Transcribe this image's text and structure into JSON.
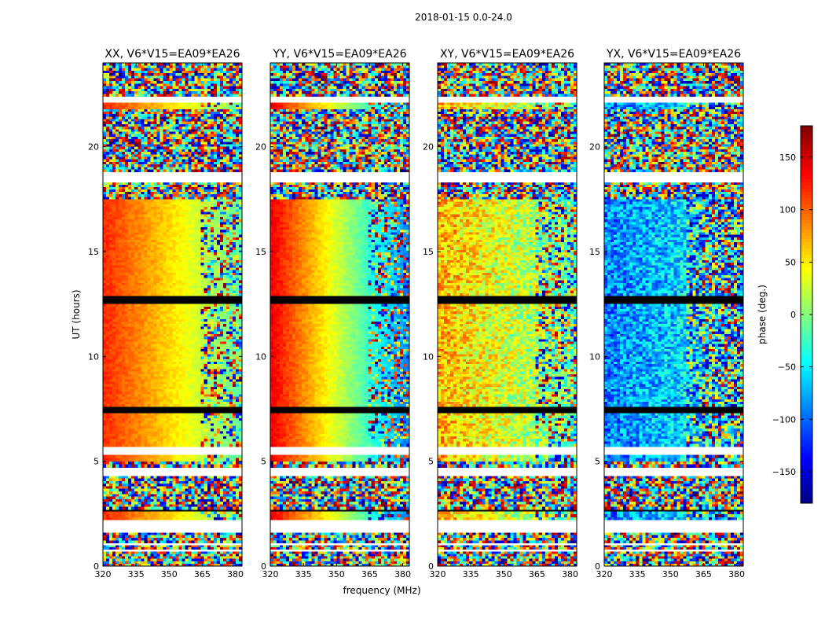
{
  "figure": {
    "suptitle": "2018-01-15 0.0-24.0"
  },
  "chart_data": [
    {
      "type": "heatmap",
      "title": "XX, V6*V15=EA09*EA26",
      "xlabel": "",
      "ylabel": "UT (hours)",
      "xlim": [
        320,
        383
      ],
      "ylim": [
        0,
        24
      ],
      "xticks": [
        "320",
        "335",
        "350",
        "365",
        "380"
      ],
      "yticks": [
        "0",
        "5",
        "10",
        "15",
        "20"
      ],
      "value": "phase (deg.)",
      "description_pattern": "coherent_low_freq_warm"
    },
    {
      "type": "heatmap",
      "title": "YY, V6*V15=EA09*EA26",
      "xlabel": "frequency (MHz)",
      "ylabel": "",
      "xlim": [
        320,
        383
      ],
      "ylim": [
        0,
        24
      ],
      "xticks": [
        "320",
        "335",
        "350",
        "365",
        "380"
      ],
      "yticks": [
        "0",
        "5",
        "10",
        "15",
        "20"
      ],
      "value": "phase (deg.)",
      "description_pattern": "coherent_gradient"
    },
    {
      "type": "heatmap",
      "title": "XY, V6*V15=EA09*EA26",
      "xlabel": "",
      "ylabel": "",
      "xlim": [
        320,
        383
      ],
      "ylim": [
        0,
        24
      ],
      "xticks": [
        "320",
        "335",
        "350",
        "365",
        "380"
      ],
      "yticks": [
        "0",
        "5",
        "10",
        "15",
        "20"
      ],
      "value": "phase (deg.)",
      "description_pattern": "noisy_warm"
    },
    {
      "type": "heatmap",
      "title": "YX, V6*V15=EA09*EA26",
      "xlabel": "",
      "ylabel": "",
      "xlim": [
        320,
        383
      ],
      "ylim": [
        0,
        24
      ],
      "xticks": [
        "320",
        "335",
        "350",
        "365",
        "380"
      ],
      "yticks": [
        "0",
        "5",
        "10",
        "15",
        "20"
      ],
      "value": "phase (deg.)",
      "description_pattern": "noisy_cool"
    }
  ],
  "colorbar": {
    "label": "phase (deg.)",
    "range": [
      -180,
      180
    ],
    "ticks": [
      "150",
      "100",
      "50",
      "0",
      "−50",
      "−100",
      "−150"
    ],
    "tick_values": [
      150,
      100,
      50,
      0,
      -50,
      -100,
      -150
    ],
    "colormap": "jet"
  },
  "colors": {
    "axis": "#000000",
    "background": "#ffffff",
    "flagged_black": "#000000"
  }
}
